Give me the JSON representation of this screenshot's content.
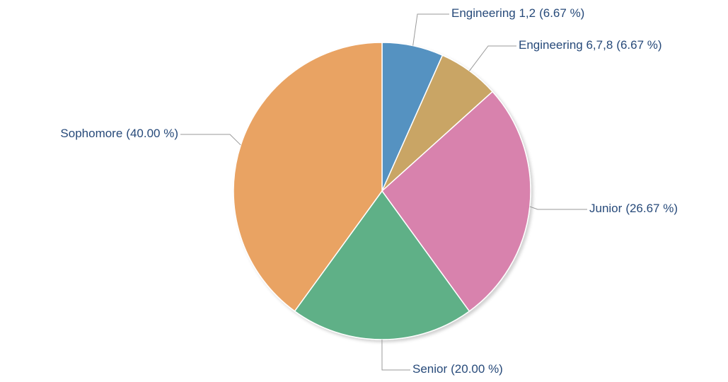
{
  "chart_data": {
    "type": "pie",
    "categories": [
      "Engineering 1,2",
      "Engineering 6,7,8",
      "Junior",
      "Senior",
      "Sophomore"
    ],
    "values": [
      6.67,
      6.67,
      26.67,
      20.0,
      40.0
    ],
    "value_labels": [
      "(6.67 %)",
      "(6.67 %)",
      "(26.67 %)",
      "(20.00 %)",
      "(40.00 %)"
    ],
    "colors": [
      "#5592c1",
      "#c9a565",
      "#d882ad",
      "#5eb087",
      "#e9a363"
    ]
  }
}
